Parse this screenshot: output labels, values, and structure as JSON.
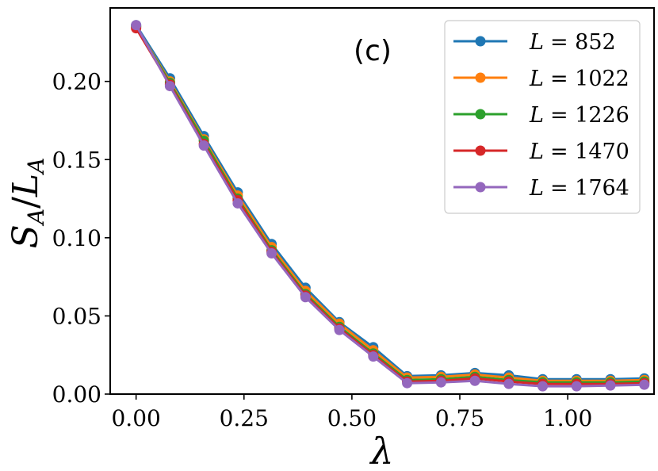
{
  "chart_data": {
    "type": "line",
    "panel_label": "(c)",
    "xlabel": "λ",
    "ylabel": "S_A / L_A",
    "ylabel_parts": {
      "main1": "S",
      "sub1": "A",
      "slash": "/",
      "main2": "L",
      "sub2": "A"
    },
    "xlim": [
      -0.06,
      1.2
    ],
    "ylim": [
      0.0,
      0.247
    ],
    "xticks": [
      0.0,
      0.25,
      0.5,
      0.75,
      1.0
    ],
    "xtick_labels": [
      "0.00",
      "0.25",
      "0.50",
      "0.75",
      "1.00"
    ],
    "yticks": [
      0.0,
      0.05,
      0.1,
      0.15,
      0.2
    ],
    "ytick_labels": [
      "0.00",
      "0.05",
      "0.10",
      "0.15",
      "0.20"
    ],
    "legend_position": "top-right",
    "x": [
      0.0,
      0.0785,
      0.157,
      0.2355,
      0.314,
      0.3925,
      0.471,
      0.5495,
      0.628,
      0.7065,
      0.785,
      0.8635,
      0.942,
      1.0205,
      1.099,
      1.1775
    ],
    "series": [
      {
        "name": "L = 852",
        "legend_lhs": "L",
        "legend_rhs": "= 852",
        "color": "#1f77b4",
        "values": [
          0.236,
          0.202,
          0.165,
          0.129,
          0.096,
          0.068,
          0.046,
          0.03,
          0.0115,
          0.012,
          0.0135,
          0.012,
          0.0095,
          0.0095,
          0.0095,
          0.01
        ]
      },
      {
        "name": "L = 1022",
        "legend_lhs": "L",
        "legend_rhs": "= 1022",
        "color": "#ff7f0e",
        "values": [
          0.235,
          0.2,
          0.163,
          0.127,
          0.094,
          0.066,
          0.045,
          0.028,
          0.0105,
          0.011,
          0.0125,
          0.0105,
          0.0085,
          0.0085,
          0.0085,
          0.009
        ]
      },
      {
        "name": "L = 1226",
        "legend_lhs": "L",
        "legend_rhs": "= 1226",
        "color": "#2ca02c",
        "values": [
          0.235,
          0.199,
          0.162,
          0.125,
          0.092,
          0.064,
          0.043,
          0.026,
          0.009,
          0.0095,
          0.011,
          0.009,
          0.0075,
          0.0075,
          0.0075,
          0.008
        ]
      },
      {
        "name": "L = 1470",
        "legend_lhs": "L",
        "legend_rhs": "= 1470",
        "color": "#d62728",
        "values": [
          0.234,
          0.198,
          0.16,
          0.124,
          0.091,
          0.063,
          0.042,
          0.025,
          0.008,
          0.0085,
          0.01,
          0.008,
          0.0065,
          0.0065,
          0.0065,
          0.007
        ]
      },
      {
        "name": "L = 1764",
        "legend_lhs": "L",
        "legend_rhs": "= 1764",
        "color": "#9467bd",
        "values": [
          0.236,
          0.197,
          0.159,
          0.122,
          0.09,
          0.062,
          0.041,
          0.024,
          0.007,
          0.0075,
          0.0085,
          0.0065,
          0.005,
          0.005,
          0.0055,
          0.006
        ]
      }
    ]
  }
}
